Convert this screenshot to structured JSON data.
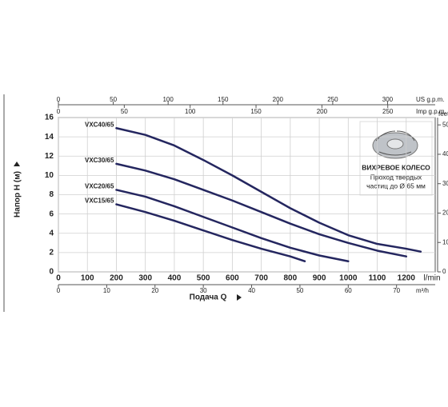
{
  "chart_data": {
    "type": "line",
    "xlabel": "Подача Q",
    "ylabel": "Напор H (м)",
    "xunit": "l/min",
    "xlim": [
      0,
      1300
    ],
    "xticks": [
      0,
      100,
      200,
      300,
      400,
      500,
      600,
      700,
      800,
      900,
      1000,
      1100,
      1200
    ],
    "ylim": [
      0,
      16
    ],
    "yticks": [
      0,
      2,
      4,
      6,
      8,
      10,
      12,
      14,
      16
    ],
    "grid": true,
    "extra_axes": [
      {
        "side": "bottom",
        "label": "m³/h",
        "lim": [
          0,
          78
        ],
        "ticks": [
          0,
          10,
          20,
          30,
          40,
          50,
          60,
          70
        ]
      },
      {
        "side": "top",
        "label": "US g.p.m.",
        "lim": [
          0,
          343.4
        ],
        "ticks": [
          0,
          50,
          100,
          150,
          200,
          250,
          300
        ]
      },
      {
        "side": "top2",
        "label": "Imp g.p.m.",
        "lim": [
          0,
          286
        ],
        "ticks": [
          0,
          50,
          100,
          150,
          200,
          250
        ]
      },
      {
        "side": "right",
        "label": "feet",
        "lim": [
          0,
          52.5
        ],
        "ticks": [
          0,
          10,
          20,
          30,
          40,
          50
        ]
      }
    ],
    "series": [
      {
        "name": "VXC40/65",
        "color": "#24265f",
        "x": [
          200,
          300,
          400,
          500,
          600,
          700,
          800,
          900,
          1000,
          1100,
          1200,
          1250
        ],
        "values": [
          14.9,
          14.2,
          13.1,
          11.6,
          10.0,
          8.3,
          6.6,
          5.1,
          3.8,
          2.9,
          2.4,
          2.1
        ]
      },
      {
        "name": "VXC30/65",
        "color": "#24265f",
        "x": [
          200,
          300,
          400,
          500,
          600,
          700,
          800,
          900,
          1000,
          1100,
          1200
        ],
        "values": [
          11.2,
          10.5,
          9.6,
          8.5,
          7.4,
          6.2,
          5.0,
          3.9,
          3.0,
          2.2,
          1.6
        ]
      },
      {
        "name": "VXC20/65",
        "color": "#24265f",
        "x": [
          200,
          300,
          400,
          500,
          600,
          700,
          800,
          900,
          1000
        ],
        "values": [
          8.5,
          7.8,
          6.8,
          5.7,
          4.6,
          3.5,
          2.5,
          1.7,
          1.1
        ]
      },
      {
        "name": "VXC15/65",
        "color": "#24265f",
        "x": [
          200,
          300,
          400,
          500,
          600,
          700,
          800,
          850
        ],
        "values": [
          7.0,
          6.2,
          5.3,
          4.3,
          3.3,
          2.4,
          1.6,
          1.1
        ]
      }
    ],
    "inset": {
      "title": "ВИХРЕВОЕ КОЛЕСО",
      "lines": [
        "Проход твердых",
        "частиц до Ø 65 мм"
      ]
    }
  }
}
